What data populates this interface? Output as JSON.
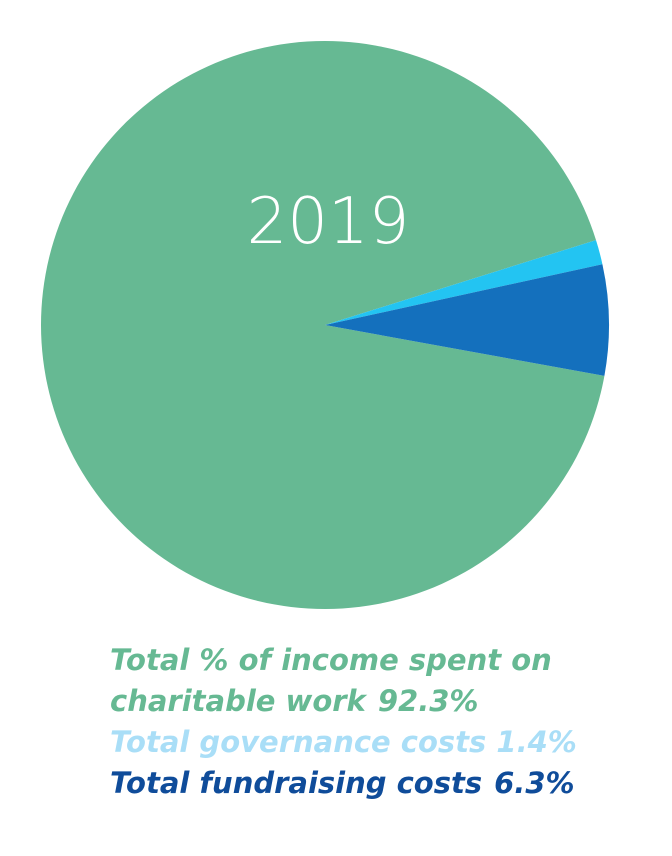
{
  "chart_data": {
    "type": "pie",
    "title": "2019",
    "slices": [
      {
        "label": "Total % of income spent on charitable work",
        "label_line1": "Total % of income spent on",
        "label_line2": "charitable work",
        "value": 92.3,
        "value_text": "92.3%",
        "color": "#66b993"
      },
      {
        "label": "Total governance costs",
        "value": 1.4,
        "value_text": "1.4%",
        "color": "#23c4f2"
      },
      {
        "label": "Total fundraising costs",
        "value": 6.3,
        "value_text": "6.3%",
        "color": "#1470bd"
      }
    ],
    "legend_placement": "bottom"
  }
}
